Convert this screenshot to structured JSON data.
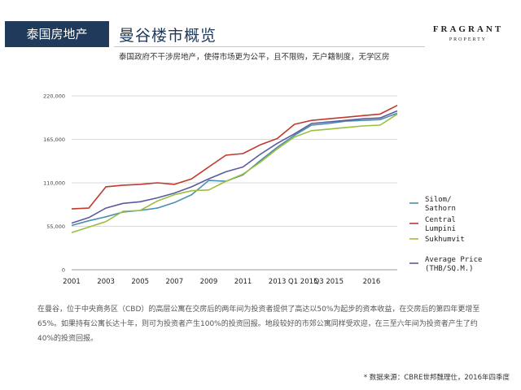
{
  "header": {
    "tag": "泰国房地产",
    "title": "曼谷楼市概览",
    "subtitle": "泰国政府不干涉房地产，使得市场更为公平，且不限购，无户籍制度，无学区房",
    "logo_main": "FRAGRANT",
    "logo_sub": "PROPERTY",
    "tag_color": "#1f3a5a"
  },
  "chart_data": {
    "type": "line",
    "x": [
      0,
      1,
      2,
      3,
      4,
      5,
      6,
      7,
      8,
      9,
      10,
      11,
      12,
      13,
      14,
      15,
      16,
      17,
      18,
      19
    ],
    "x_tick_labels": [
      "2001",
      "2003",
      "2005",
      "2007",
      "2009",
      "2011",
      "2013",
      "Q1 2015",
      "Q3 2015",
      "2016"
    ],
    "x_tick_positions": [
      0,
      2,
      4,
      6,
      8,
      10,
      12,
      13.5,
      15,
      17.5
    ],
    "y_ticks": [
      "0",
      "55,000",
      "110,000",
      "165,000",
      "220,000"
    ],
    "ylim": [
      0,
      220000
    ],
    "grid": true,
    "legend_position": "right",
    "series": [
      {
        "name": "Silom/ Sathorn",
        "color": "#4a8fb0",
        "values": [
          56000,
          62000,
          67000,
          73000,
          75000,
          78000,
          85000,
          95000,
          113000,
          112000,
          120000,
          138000,
          155000,
          170000,
          183000,
          185000,
          188000,
          189000,
          190000,
          198000
        ]
      },
      {
        "name": "Central Lumpini",
        "color": "#c0392b",
        "values": [
          77000,
          78000,
          105000,
          107000,
          108000,
          110000,
          108000,
          115000,
          130000,
          145000,
          147000,
          158000,
          166000,
          184000,
          189000,
          191000,
          193000,
          195000,
          197000,
          208000
        ]
      },
      {
        "name": "Sukhumvit",
        "color": "#9bbf3a",
        "values": [
          47000,
          54000,
          61000,
          74000,
          75000,
          87000,
          95000,
          100000,
          101000,
          112000,
          121000,
          136000,
          153000,
          168000,
          176000,
          178000,
          180000,
          182000,
          183000,
          197000
        ]
      },
      {
        "name": "Average Price (THB/SQ.M.)",
        "color": "#5a5aa0",
        "values": [
          59000,
          66000,
          78000,
          84000,
          86000,
          91000,
          97000,
          105000,
          115000,
          124000,
          130000,
          146000,
          160000,
          172000,
          185000,
          187000,
          189000,
          191000,
          192000,
          201000
        ]
      }
    ]
  },
  "legend_lines": [
    [
      "Silom/",
      "Sathorn"
    ],
    [
      "Central",
      "Lumpini"
    ],
    [
      "Sukhumvit"
    ],
    [
      "Average Price",
      "(THB/SQ.M.)"
    ]
  ],
  "description": "在曼谷，位于中央商务区（CBD）的高层公寓在交房后的两年间为投资者提供了高达以50%为起步的资本收益，在交房后的第四年更增至65%。如果持有公寓长达十年，则可为投资者产生100%的投资回报。地段较好的市郊公寓同样受欢迎，在三至六年间为投资者产生了约40%的投资回报。",
  "source": "* 数据来源：CBRE世邦魏理仕，2016年四季度"
}
